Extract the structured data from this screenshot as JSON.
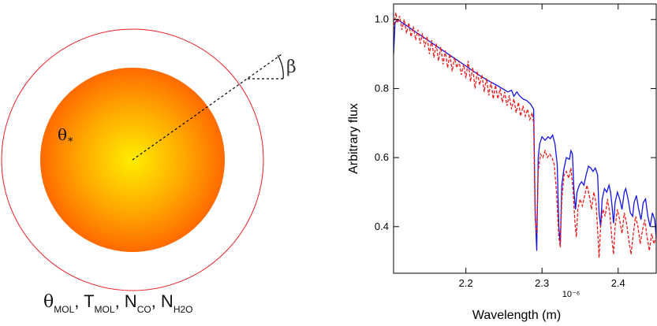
{
  "diagram": {
    "star_label": "θ",
    "star_label_sub": "*",
    "angle_label": "β",
    "params": [
      {
        "sym": "θ",
        "sub": "MOL"
      },
      {
        "sym": "T",
        "sub": "MOL"
      },
      {
        "sym": "N",
        "sub": "CO"
      },
      {
        "sym": "N",
        "sub": "H2O"
      }
    ],
    "colors": {
      "star_center": "#ffee00",
      "star_edge": "#ff6a00",
      "shell": "#e8202a"
    }
  },
  "chart_data": {
    "type": "line",
    "xlabel": "Wavelength (m)",
    "x_scale_label": "10⁻⁶",
    "ylabel": "Arbitrary flux",
    "xlim": [
      2.105,
      2.45
    ],
    "ylim": [
      0.265,
      1.045
    ],
    "xticks": [
      2.2,
      2.3,
      2.4
    ],
    "xtick_labels": [
      "2.2",
      "2.3",
      "2.4"
    ],
    "yticks": [
      0.4,
      0.6,
      0.8,
      1.0
    ],
    "ytick_labels": [
      "0.4",
      "0.6",
      "0.8",
      "1.0"
    ],
    "grid": false,
    "series": [
      {
        "style": "solid",
        "color": "#1414e6",
        "points": [
          [
            2.105,
            0.9
          ],
          [
            2.107,
            0.99
          ],
          [
            2.11,
            1.0
          ],
          [
            2.12,
            0.985
          ],
          [
            2.13,
            0.97
          ],
          [
            2.14,
            0.955
          ],
          [
            2.15,
            0.94
          ],
          [
            2.16,
            0.925
          ],
          [
            2.17,
            0.91
          ],
          [
            2.18,
            0.895
          ],
          [
            2.19,
            0.88
          ],
          [
            2.2,
            0.865
          ],
          [
            2.21,
            0.85
          ],
          [
            2.22,
            0.835
          ],
          [
            2.23,
            0.822
          ],
          [
            2.24,
            0.81
          ],
          [
            2.25,
            0.797
          ],
          [
            2.255,
            0.79
          ],
          [
            2.26,
            0.795
          ],
          [
            2.263,
            0.778
          ],
          [
            2.267,
            0.79
          ],
          [
            2.27,
            0.78
          ],
          [
            2.275,
            0.77
          ],
          [
            2.28,
            0.765
          ],
          [
            2.285,
            0.755
          ],
          [
            2.289,
            0.74
          ],
          [
            2.291,
            0.45
          ],
          [
            2.293,
            0.33
          ],
          [
            2.295,
            0.6
          ],
          [
            2.297,
            0.64
          ],
          [
            2.3,
            0.66
          ],
          [
            2.304,
            0.65
          ],
          [
            2.308,
            0.66
          ],
          [
            2.311,
            0.655
          ],
          [
            2.314,
            0.665
          ],
          [
            2.317,
            0.64
          ],
          [
            2.32,
            0.58
          ],
          [
            2.322,
            0.4
          ],
          [
            2.324,
            0.35
          ],
          [
            2.326,
            0.52
          ],
          [
            2.329,
            0.57
          ],
          [
            2.332,
            0.6
          ],
          [
            2.336,
            0.595
          ],
          [
            2.338,
            0.62
          ],
          [
            2.34,
            0.61
          ],
          [
            2.342,
            0.5
          ],
          [
            2.344,
            0.45
          ],
          [
            2.346,
            0.5
          ],
          [
            2.349,
            0.52
          ],
          [
            2.352,
            0.53
          ],
          [
            2.355,
            0.52
          ],
          [
            2.358,
            0.55
          ],
          [
            2.361,
            0.575
          ],
          [
            2.364,
            0.57
          ],
          [
            2.367,
            0.56
          ],
          [
            2.37,
            0.57
          ],
          [
            2.373,
            0.55
          ],
          [
            2.375,
            0.44
          ],
          [
            2.377,
            0.4
          ],
          [
            2.379,
            0.48
          ],
          [
            2.382,
            0.51
          ],
          [
            2.385,
            0.5
          ],
          [
            2.388,
            0.52
          ],
          [
            2.39,
            0.5
          ],
          [
            2.392,
            0.46
          ],
          [
            2.394,
            0.41
          ],
          [
            2.396,
            0.47
          ],
          [
            2.399,
            0.5
          ],
          [
            2.402,
            0.48
          ],
          [
            2.405,
            0.45
          ],
          [
            2.408,
            0.5
          ],
          [
            2.41,
            0.51
          ],
          [
            2.413,
            0.48
          ],
          [
            2.416,
            0.44
          ],
          [
            2.419,
            0.43
          ],
          [
            2.421,
            0.47
          ],
          [
            2.424,
            0.49
          ],
          [
            2.427,
            0.45
          ],
          [
            2.43,
            0.42
          ],
          [
            2.433,
            0.47
          ],
          [
            2.436,
            0.48
          ],
          [
            2.439,
            0.43
          ],
          [
            2.442,
            0.4
          ],
          [
            2.445,
            0.44
          ],
          [
            2.448,
            0.42
          ],
          [
            2.45,
            0.37
          ]
        ]
      },
      {
        "style": "dashed",
        "color": "#ee1b1b",
        "points": [
          [
            2.105,
            0.97
          ],
          [
            2.108,
            1.02
          ],
          [
            2.11,
            0.99
          ],
          [
            2.113,
            1.01
          ],
          [
            2.116,
            0.97
          ],
          [
            2.119,
            1.0
          ],
          [
            2.122,
            0.96
          ],
          [
            2.125,
            0.99
          ],
          [
            2.128,
            0.95
          ],
          [
            2.131,
            0.98
          ],
          [
            2.134,
            0.94
          ],
          [
            2.137,
            0.97
          ],
          [
            2.14,
            0.93
          ],
          [
            2.143,
            0.96
          ],
          [
            2.146,
            0.92
          ],
          [
            2.149,
            0.95
          ],
          [
            2.152,
            0.9
          ],
          [
            2.155,
            0.94
          ],
          [
            2.158,
            0.89
          ],
          [
            2.161,
            0.93
          ],
          [
            2.164,
            0.88
          ],
          [
            2.167,
            0.92
          ],
          [
            2.17,
            0.87
          ],
          [
            2.173,
            0.91
          ],
          [
            2.176,
            0.86
          ],
          [
            2.179,
            0.9
          ],
          [
            2.182,
            0.85
          ],
          [
            2.185,
            0.89
          ],
          [
            2.188,
            0.86
          ],
          [
            2.191,
            0.88
          ],
          [
            2.194,
            0.84
          ],
          [
            2.197,
            0.87
          ],
          [
            2.2,
            0.83
          ],
          [
            2.203,
            0.88
          ],
          [
            2.206,
            0.82
          ],
          [
            2.209,
            0.86
          ],
          [
            2.212,
            0.8
          ],
          [
            2.215,
            0.85
          ],
          [
            2.218,
            0.81
          ],
          [
            2.221,
            0.84
          ],
          [
            2.224,
            0.79
          ],
          [
            2.227,
            0.83
          ],
          [
            2.23,
            0.78
          ],
          [
            2.233,
            0.82
          ],
          [
            2.236,
            0.77
          ],
          [
            2.239,
            0.81
          ],
          [
            2.242,
            0.77
          ],
          [
            2.245,
            0.8
          ],
          [
            2.248,
            0.76
          ],
          [
            2.251,
            0.79
          ],
          [
            2.254,
            0.75
          ],
          [
            2.257,
            0.78
          ],
          [
            2.26,
            0.74
          ],
          [
            2.263,
            0.77
          ],
          [
            2.266,
            0.73
          ],
          [
            2.269,
            0.76
          ],
          [
            2.272,
            0.72
          ],
          [
            2.275,
            0.75
          ],
          [
            2.278,
            0.72
          ],
          [
            2.281,
            0.74
          ],
          [
            2.284,
            0.71
          ],
          [
            2.287,
            0.73
          ],
          [
            2.289,
            0.7
          ],
          [
            2.291,
            0.42
          ],
          [
            2.293,
            0.38
          ],
          [
            2.295,
            0.56
          ],
          [
            2.298,
            0.61
          ],
          [
            2.301,
            0.6
          ],
          [
            2.304,
            0.62
          ],
          [
            2.307,
            0.6
          ],
          [
            2.31,
            0.61
          ],
          [
            2.313,
            0.6
          ],
          [
            2.316,
            0.58
          ],
          [
            2.319,
            0.5
          ],
          [
            2.322,
            0.37
          ],
          [
            2.324,
            0.34
          ],
          [
            2.326,
            0.48
          ],
          [
            2.329,
            0.55
          ],
          [
            2.332,
            0.56
          ],
          [
            2.335,
            0.54
          ],
          [
            2.338,
            0.57
          ],
          [
            2.341,
            0.5
          ],
          [
            2.343,
            0.42
          ],
          [
            2.345,
            0.37
          ],
          [
            2.347,
            0.45
          ],
          [
            2.35,
            0.48
          ],
          [
            2.353,
            0.46
          ],
          [
            2.356,
            0.49
          ],
          [
            2.359,
            0.52
          ],
          [
            2.362,
            0.49
          ],
          [
            2.365,
            0.45
          ],
          [
            2.368,
            0.5
          ],
          [
            2.371,
            0.47
          ],
          [
            2.373,
            0.39
          ],
          [
            2.375,
            0.31
          ],
          [
            2.377,
            0.4
          ],
          [
            2.38,
            0.45
          ],
          [
            2.383,
            0.43
          ],
          [
            2.386,
            0.48
          ],
          [
            2.389,
            0.44
          ],
          [
            2.392,
            0.36
          ],
          [
            2.394,
            0.32
          ],
          [
            2.396,
            0.4
          ],
          [
            2.399,
            0.45
          ],
          [
            2.402,
            0.42
          ],
          [
            2.405,
            0.38
          ],
          [
            2.408,
            0.44
          ],
          [
            2.411,
            0.41
          ],
          [
            2.414,
            0.36
          ],
          [
            2.417,
            0.32
          ],
          [
            2.42,
            0.38
          ],
          [
            2.423,
            0.43
          ],
          [
            2.426,
            0.4
          ],
          [
            2.429,
            0.35
          ],
          [
            2.432,
            0.39
          ],
          [
            2.435,
            0.42
          ],
          [
            2.438,
            0.37
          ],
          [
            2.441,
            0.33
          ],
          [
            2.444,
            0.38
          ],
          [
            2.447,
            0.35
          ],
          [
            2.45,
            0.37
          ]
        ]
      }
    ]
  }
}
